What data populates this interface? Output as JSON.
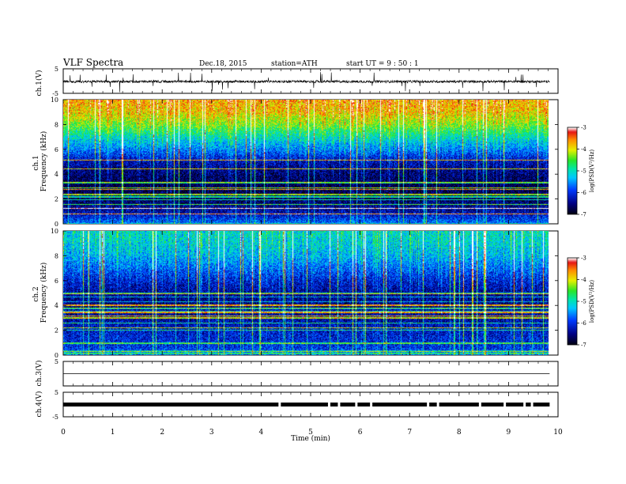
{
  "header": {
    "title": "VLF  Spectra",
    "date": "Dec.18, 2015",
    "station": "station=ATH",
    "start": "start  UT  =    9  : 50 : 1"
  },
  "chart_data": [
    {
      "type": "line",
      "panel": "ch1-waveform",
      "ylabel": "ch.1(V)",
      "ylim": [
        -5,
        5
      ],
      "yticks": [
        5,
        -5
      ],
      "series_description_values": {
        "baseline": -0.2,
        "noise_amplitude": 0.5
      }
    },
    {
      "type": "heatmap",
      "panel": "ch1-spectrogram",
      "ylabel_top": "ch.1",
      "ylabel": "Frequency  (kHz)",
      "ylim": [
        0,
        10
      ],
      "yticks": [
        0,
        2,
        4,
        6,
        8,
        10
      ],
      "colorbar": {
        "label": "log(PSD(V²/Hz)",
        "range": [
          -7,
          -3
        ],
        "ticks": [
          -3,
          -4,
          -5,
          -6,
          -7
        ]
      },
      "profile_freq_khz": [
        0,
        1,
        2,
        3,
        4,
        5,
        6,
        7,
        8,
        9,
        10
      ],
      "profile_log_psd": [
        -5.6,
        -6.3,
        -6.6,
        -6.7,
        -6.5,
        -6.2,
        -5.5,
        -4.9,
        -4.2,
        -3.7,
        -3.5
      ]
    },
    {
      "type": "heatmap",
      "panel": "ch2-spectrogram",
      "ylabel_top": "ch.2",
      "ylabel": "Frequency  (kHz)",
      "ylim": [
        0,
        10
      ],
      "yticks": [
        0,
        2,
        4,
        6,
        8,
        10
      ],
      "colorbar": {
        "label": "log(PSD(V²/Hz)",
        "range": [
          -7,
          -3
        ],
        "ticks": [
          -3,
          -4,
          -5,
          -6,
          -7
        ]
      },
      "profile_freq_khz": [
        0,
        1,
        2,
        3,
        4,
        5,
        6,
        7,
        8,
        9,
        10
      ],
      "profile_log_psd": [
        -5.8,
        -6.0,
        -6.1,
        -6.3,
        -6.4,
        -6.3,
        -6.0,
        -5.6,
        -5.2,
        -5.0,
        -4.9
      ]
    },
    {
      "type": "line",
      "panel": "ch3-waveform",
      "ylabel": "ch.3(V)",
      "ylim": [
        -5,
        5
      ],
      "yticks": [
        5
      ],
      "series_description_values": {
        "baseline": 0
      }
    },
    {
      "type": "line",
      "panel": "ch4-waveform",
      "ylabel": "ch.4(V)",
      "ylim": [
        -5,
        5
      ],
      "yticks": [
        5,
        -5
      ],
      "series_description_values": {
        "baseline": 0.0
      },
      "x_gaps_min": [
        4.35,
        5.35,
        5.55,
        5.9,
        6.2,
        7.35,
        7.55,
        8.4,
        8.9,
        9.3,
        9.45
      ]
    }
  ],
  "xaxis": {
    "label": "Time  (min)",
    "ticks": [
      "0",
      "1",
      "2",
      "3",
      "4",
      "5",
      "6",
      "7",
      "8",
      "9",
      "10"
    ],
    "xlim": [
      0,
      10
    ],
    "data_end_min": 9.83
  }
}
